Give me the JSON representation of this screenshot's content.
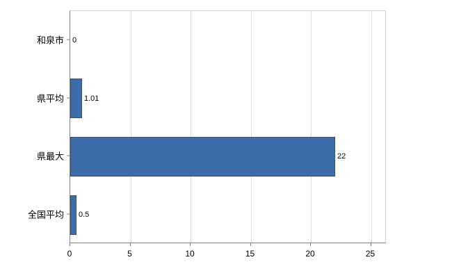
{
  "chart_data": {
    "type": "bar",
    "orientation": "horizontal",
    "title": "",
    "xlabel": "",
    "ylabel": "",
    "categories": [
      "和泉市",
      "県平均",
      "県最大",
      "全国平均"
    ],
    "values": [
      0,
      1.01,
      22,
      0.5
    ],
    "value_labels": [
      "0",
      "1.01",
      "22",
      "0.5"
    ],
    "x_ticks": [
      0,
      5,
      10,
      15,
      20,
      25
    ],
    "xlim": [
      0,
      26.3
    ],
    "grid": true,
    "legend": false,
    "bar_color": "#3c6da8",
    "bar_border_color": "#2b517f",
    "grid_color": "#dcdcdc",
    "axis_color": "#7f7f7f",
    "text_color": "#000000",
    "background_color": "#ffffff"
  }
}
